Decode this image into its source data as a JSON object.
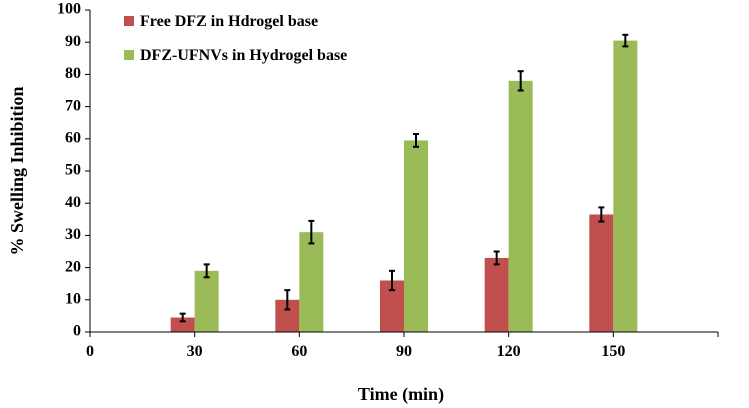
{
  "chart_data": {
    "type": "bar",
    "xlabel": "Time (min)",
    "ylabel": "% Swelling Inhibition",
    "ylim": [
      0,
      100
    ],
    "yticks": [
      "0",
      "10",
      "20",
      "30",
      "40",
      "50",
      "60",
      "70",
      "80",
      "90",
      "100"
    ],
    "x_axis_origin_label": "0",
    "categories": [
      "30",
      "60",
      "90",
      "120",
      "150"
    ],
    "legend_position": "top-left",
    "grid": false,
    "error_bars": true,
    "series": [
      {
        "name": "Free DFZ in Hdrogel base",
        "color": "#c0504d",
        "values": [
          4.5,
          10,
          16,
          23,
          36.5
        ],
        "errors": [
          1.2,
          3,
          3,
          2,
          2.2
        ]
      },
      {
        "name": "DFZ-UFNVs in Hydrogel base",
        "color": "#9bbb59",
        "values": [
          19,
          31,
          59.5,
          78,
          90.5
        ],
        "errors": [
          2,
          3.5,
          2,
          3,
          1.8
        ]
      }
    ]
  }
}
